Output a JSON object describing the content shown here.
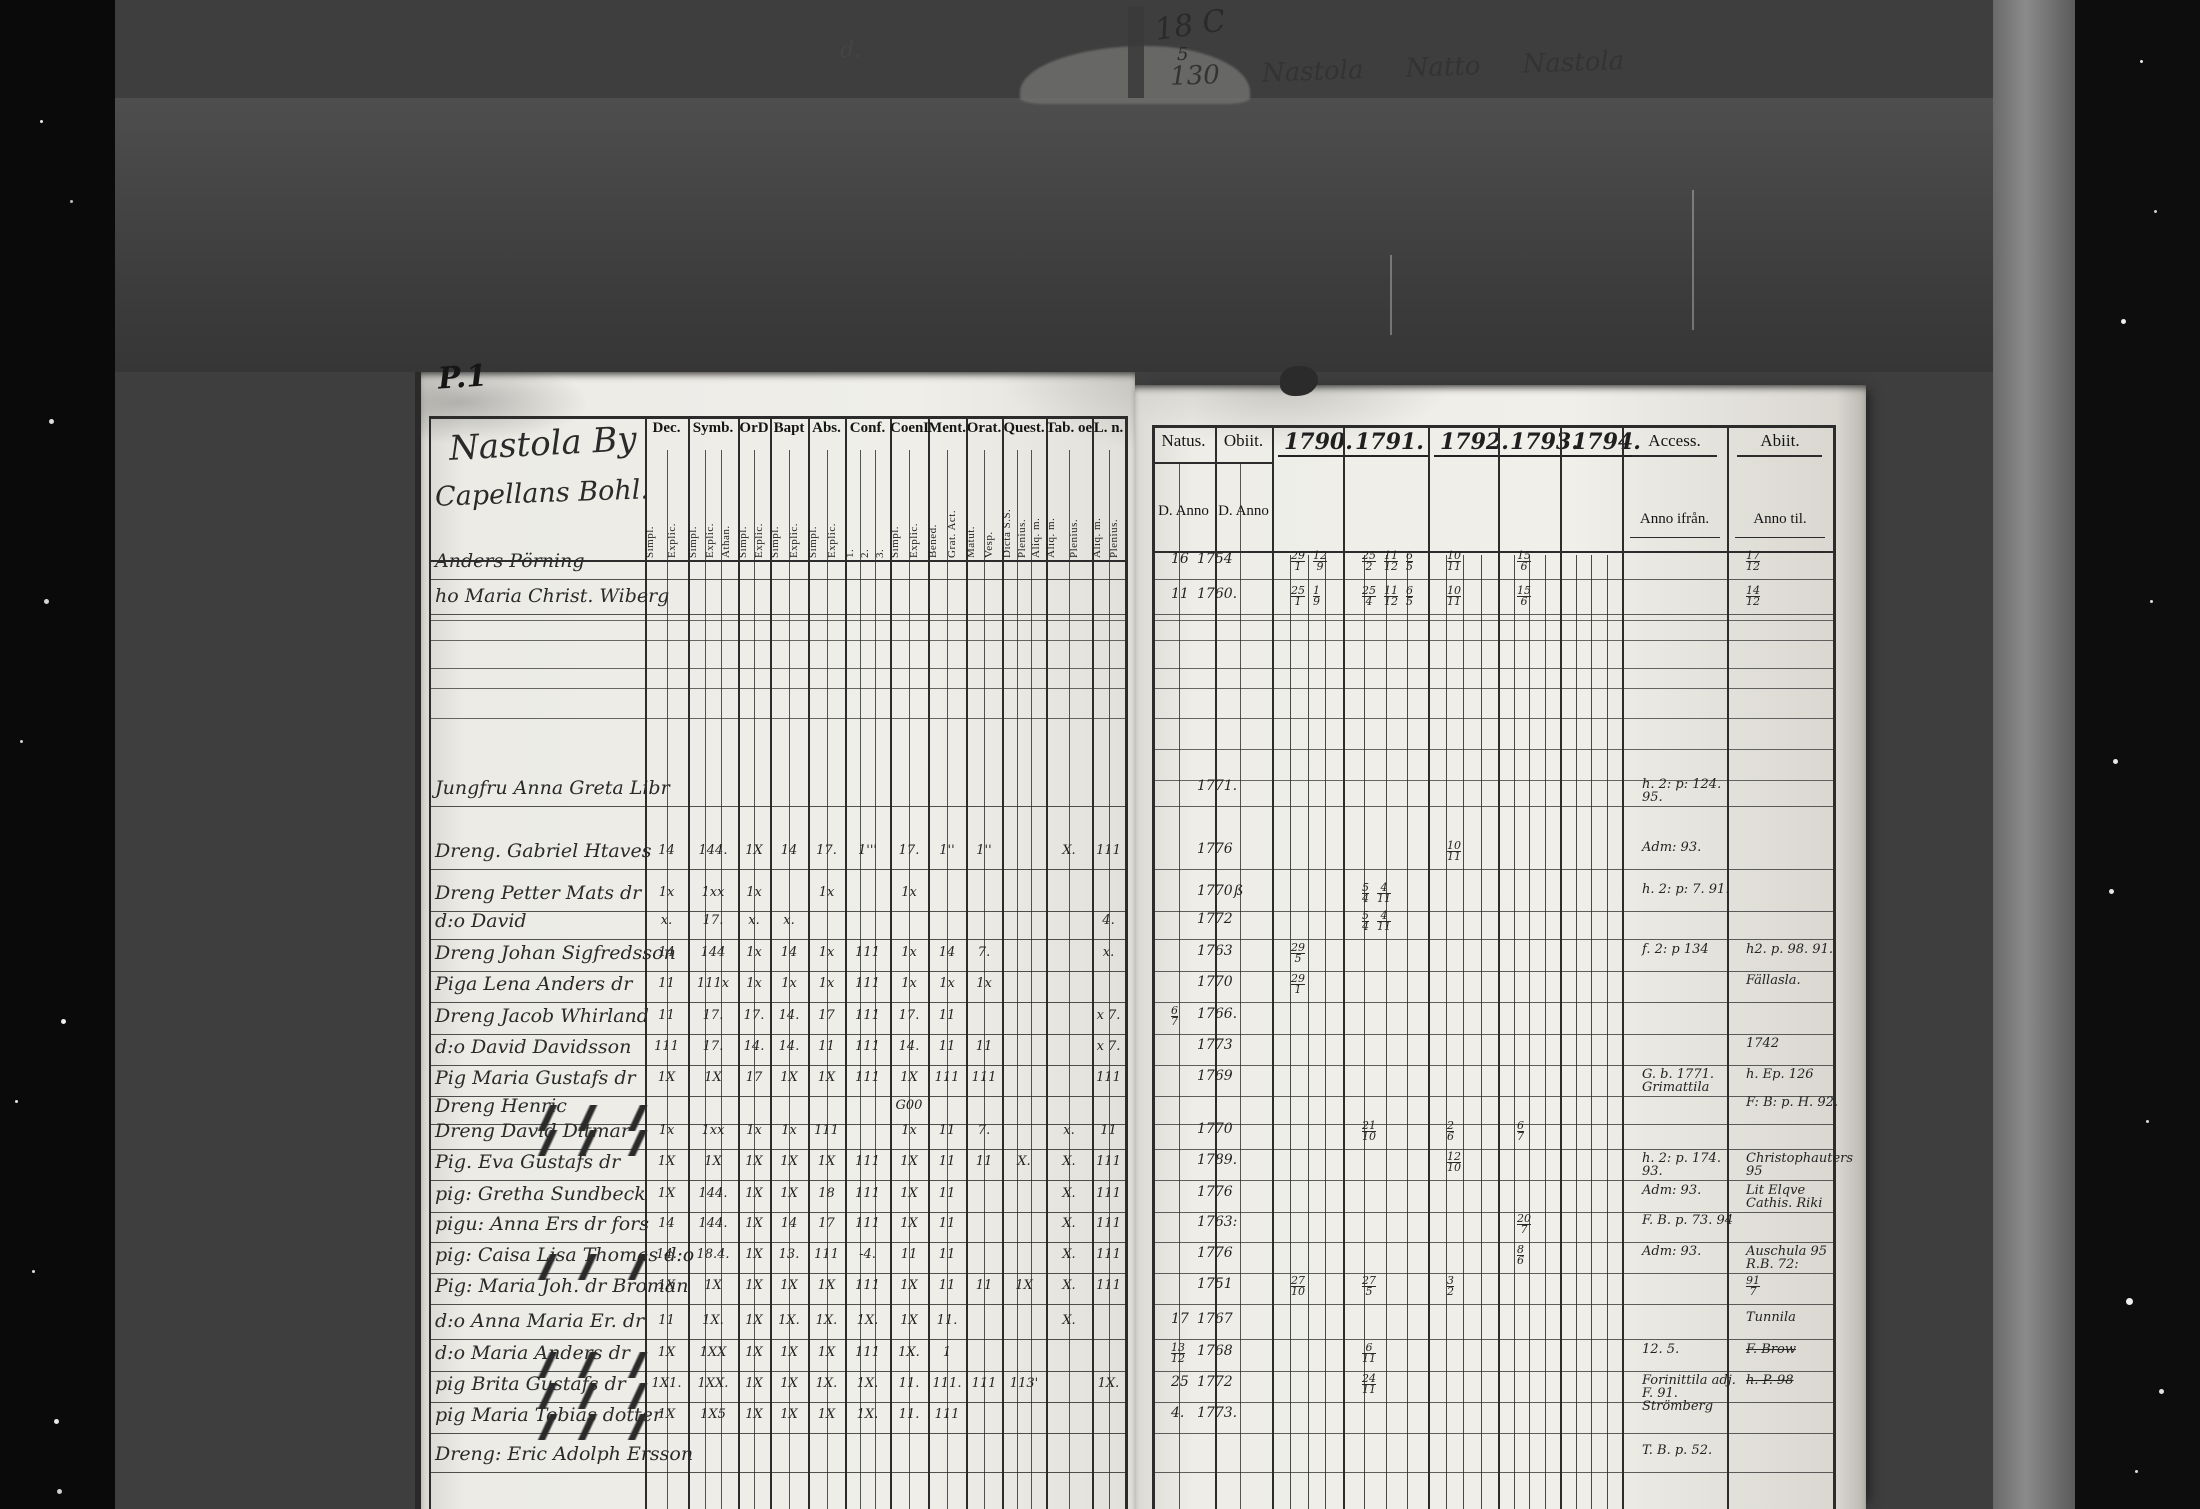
{
  "colors": {
    "film_background": "#3e3e3e",
    "film_black": "#0a0a0a",
    "paper": "#eae8e3",
    "ink": "#1d1d1d",
    "print_ink": "#151515"
  },
  "film": {
    "frame_code": "18 C",
    "frame_code_sub": "5",
    "frame_title": "130 Nastola Natto Nastola",
    "strip_mark": "d."
  },
  "page_left": {
    "page_number": "P.1",
    "title_line1": "Nastola By",
    "title_line2": "Capellans Bohl.",
    "column_groups": [
      {
        "label": "Dec.",
        "sub": [
          "Simpl.",
          "Explic."
        ]
      },
      {
        "label": "Symb.",
        "sub": [
          "Simpl.",
          "Explic.",
          "Athan."
        ]
      },
      {
        "label": "OrD",
        "sub": [
          "Simpl.",
          "Explic."
        ]
      },
      {
        "label": "Bapt",
        "sub": [
          "Simpl.",
          "Explic."
        ]
      },
      {
        "label": "Abs.",
        "sub": [
          "Simpl.",
          "Explic."
        ]
      },
      {
        "label": "Conf.",
        "sub": [
          "1.",
          "2.",
          "3."
        ]
      },
      {
        "label": "CoenD",
        "sub": [
          "Simpl.",
          "Explic."
        ]
      },
      {
        "label": "Ment.",
        "sub": [
          "Bened.",
          "Grat. Act."
        ]
      },
      {
        "label": "Orat.",
        "sub": [
          "Matut.",
          "Vesp."
        ]
      },
      {
        "label": "Quest.",
        "sub": [
          "Dicta S.S.",
          "Plenius.",
          "Aliq. m."
        ]
      },
      {
        "label": "Tab. oeco.",
        "sub": [
          "Aliq. m.",
          "Plenius."
        ]
      },
      {
        "label": "L. n.",
        "sub": [
          "Aliq. m.",
          "Plenius."
        ]
      }
    ]
  },
  "page_right": {
    "natus_label": "Natus.",
    "obiit_label": "Obiit.",
    "natus_sub": "D. Anno",
    "obiit_sub": "D. Anno",
    "years": [
      "1790.",
      "1791.",
      "1792.",
      "1793.",
      "1794."
    ],
    "accessit_label": "Access.",
    "accessit_sub": "Anno ifrån.",
    "abiit_label": "Abiit.",
    "abiit_sub": "Anno til."
  },
  "rows": [
    {
      "name": "Anders Pörning",
      "natus_d": "16",
      "natus_anno": "1754",
      "y1790": "29/1 12/9",
      "y1791": "25/2 11/12 6/5",
      "y1792": "10/11",
      "y1793": "15/6",
      "abiit": "17/12"
    },
    {
      "name": "ho Maria Christ. Wiberg",
      "natus_d": "11",
      "natus_anno": "1760.",
      "y1790": "25/1 1/9",
      "y1791": "25/4 11/12 6/5",
      "y1792": "10/11",
      "y1793": "15/6",
      "abiit": "14/12"
    },
    {
      "name": "Jungfru Anna Greta Libr",
      "natus_anno": "1771.",
      "accessit": "h. 2: p: 124. 95."
    },
    {
      "name": "Dreng. Gabriel Htaves",
      "natus_anno": "1776",
      "y1792": "10/11",
      "accessit": "Adm: 93.",
      "marks": [
        "14",
        "144.",
        "1X",
        "14",
        "17.",
        "1'''",
        "17.",
        "1''",
        "1''",
        "",
        "X.",
        "111"
      ]
    },
    {
      "name": "Dreng Petter Mats dr",
      "natus_anno": "1770",
      "obiit_d": "ß",
      "y1791": "5/4 4/11",
      "accessit": "h. 2: p: 7. 91.",
      "marks": [
        "1x",
        "1xx",
        "1x",
        "",
        "1x",
        "",
        "1x",
        "",
        "",
        "",
        "",
        ""
      ]
    },
    {
      "name": "d:o David",
      "natus_anno": "1772",
      "y1791": "5/4 4/11",
      "marks": [
        "x.",
        "17.",
        "x.",
        "x.",
        "",
        "",
        "",
        "",
        "",
        "",
        "",
        "4."
      ]
    },
    {
      "name": "Dreng Johan Sigfredsson",
      "natus_anno": "1763",
      "y1790": "29/5",
      "accessit": "f. 2: p 134",
      "abiit": "h2. p. 98. 91.",
      "marks": [
        "14",
        "144",
        "1x",
        "14",
        "1x",
        "111",
        "1x",
        "14",
        "7.",
        "",
        "",
        "x."
      ]
    },
    {
      "name": "Piga Lena Anders dr",
      "natus_anno": "1770",
      "y1790": "29/1",
      "abiit": "Fällasla.",
      "marks": [
        "11",
        "111x",
        "1x",
        "1x",
        "1x",
        "111",
        "1x",
        "1x",
        "1x",
        "",
        "",
        ""
      ]
    },
    {
      "name": "Dreng Jacob Whirland",
      "natus_d": "6/7",
      "natus_anno": "1766.",
      "marks": [
        "11",
        "17.",
        "17.",
        "14.",
        "17",
        "111",
        "17.",
        "11",
        "",
        "",
        "",
        "x 7."
      ]
    },
    {
      "name": "d:o David Davidsson",
      "natus_anno": "1773",
      "abiit": "1742",
      "marks": [
        "111",
        "17.",
        "14.",
        "14.",
        "11",
        "111",
        "14.",
        "11",
        "11",
        "",
        "",
        "x 7."
      ]
    },
    {
      "name": "Pig Maria Gustafs dr",
      "natus_anno": "1769",
      "accessit": "G. b. 1771. Grimattila",
      "abiit": "h. Ep. 126",
      "marks": [
        "1X",
        "1X",
        "17",
        "1X",
        "1X",
        "111",
        "1X",
        "111",
        "111",
        "",
        "",
        "111"
      ]
    },
    {
      "name": "Dreng Henric",
      "struck": true,
      "abiit": "F: B: p. H. 92.",
      "marks": [
        "",
        "",
        "",
        "",
        "",
        "",
        "G00",
        "",
        "",
        "",
        "",
        ""
      ]
    },
    {
      "name": "Dreng David Ditmar",
      "struck": true,
      "natus_anno": "1770",
      "y1791": "21/10",
      "y1792": "2/6",
      "y1793": "6/7",
      "marks": [
        "1x",
        "1xx",
        "1x",
        "1x",
        "111",
        "",
        "1x",
        "11",
        "7.",
        "",
        "x.",
        "11"
      ]
    },
    {
      "name": "Pig. Eva Gustafs dr",
      "natus_anno": "1789.",
      "y1792": "12/10",
      "accessit": "h. 2: p. 174. 93.",
      "abiit": "Christophauters 95",
      "marks": [
        "1X",
        "1X",
        "1X",
        "1X",
        "1X",
        "111",
        "1X",
        "11",
        "11",
        "X.",
        "X.",
        "111"
      ]
    },
    {
      "name": "pig: Gretha Sundbeck",
      "natus_anno": "1776",
      "accessit": "Adm: 93.",
      "abiit": "Lit Elqve Cathis. Riki",
      "marks": [
        "1X",
        "144.",
        "1X",
        "1X",
        "18",
        "111",
        "1X",
        "11",
        "",
        "",
        "X.",
        "111"
      ]
    },
    {
      "name": "pigu: Anna Ers dr fors",
      "natus_anno": "1763:",
      "y1793": "20/7",
      "accessit": "F. B. p. 73. 94",
      "marks": [
        "14",
        "144.",
        "1X",
        "14",
        "17",
        "111",
        "1X",
        "11",
        "",
        "",
        "X.",
        "111"
      ]
    },
    {
      "name": "pig: Caisa Lisa Thomas d:o",
      "struck": true,
      "natus_anno": "1776",
      "y1793": "8/6",
      "accessit": "Adm: 93.",
      "abiit": "Auschula 95 R.B. 72:",
      "marks": [
        "14.",
        "18.4.",
        "1X",
        "13.",
        "111",
        "-4.",
        "11",
        "11",
        "",
        "",
        "X.",
        "111"
      ]
    },
    {
      "name": "Pig: Maria Joh. dr Broman",
      "natus_anno": "1751",
      "y1790": "27/10",
      "y1791": "27/5",
      "y1792": "3/2",
      "abiit": "91/7",
      "marks": [
        "1X",
        "1X",
        "1X",
        "1X",
        "1X",
        "111",
        "1X",
        "11",
        "11",
        "1X",
        "X.",
        "111"
      ]
    },
    {
      "name": "d:o Anna Maria Er. dr",
      "natus_d": "17",
      "natus_anno": "1767",
      "abiit": "Tunnila",
      "marks": [
        "11",
        "1X.",
        "1X",
        "1X.",
        "1X.",
        "1X.",
        "1X",
        "11.",
        "",
        "",
        "X.",
        ""
      ]
    },
    {
      "name": "d:o Maria Anders dr",
      "struck": true,
      "natus_d": "13/12",
      "natus_anno": "1768",
      "y1791": "6/11",
      "accessit": "12. 5.",
      "abiit": "F. Brow",
      "abiit_struck": true,
      "marks": [
        "1X",
        "1XX",
        "1X",
        "1X",
        "1X",
        "111",
        "1X.",
        "1",
        "",
        "",
        "",
        ""
      ]
    },
    {
      "name": "pig Brita Gustafs dr",
      "struck": true,
      "natus_d": "25",
      "natus_anno": "1772",
      "y1791": "24/11",
      "accessit": "Forinittila adj. F. 91. Strömberg",
      "abiit": "h. P. 98",
      "abiit_struck": true,
      "marks": [
        "1X1.",
        "1XX.",
        "1X",
        "1X",
        "1X.",
        "1X.",
        "11.",
        "111.",
        "111",
        "113'",
        "",
        "1X."
      ]
    },
    {
      "name": "pig Maria Tobias dotter",
      "struck": true,
      "natus_d": "4.",
      "natus_anno": "1773.",
      "marks": [
        "1X",
        "1X5",
        "1X",
        "1X",
        "1X",
        "1X.",
        "11.",
        "111",
        "",
        "",
        "",
        ""
      ]
    },
    {
      "name": "Dreng: Eric Adolph Ersson",
      "accessit": "T. B. p. 52.",
      "marks": []
    }
  ]
}
